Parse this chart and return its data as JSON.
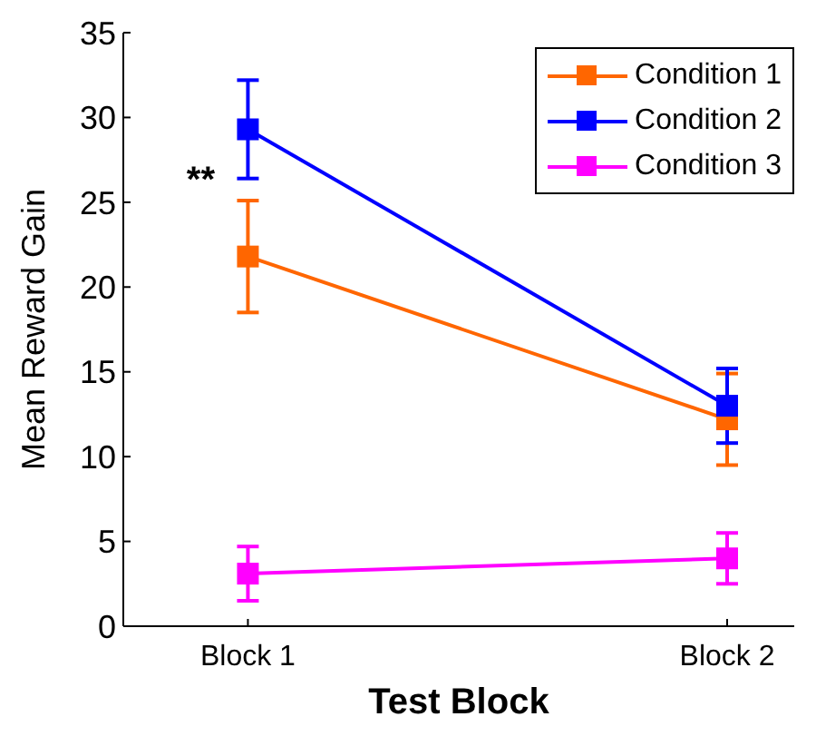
{
  "chart_data": {
    "type": "line",
    "xlabel": "Test Block",
    "ylabel": "Mean Reward Gain",
    "categories": [
      "Block 1",
      "Block 2"
    ],
    "ylim": [
      0,
      35
    ],
    "yticks": [
      0,
      5,
      10,
      15,
      20,
      25,
      30,
      35
    ],
    "grid": false,
    "legend": "top right",
    "marker": "square",
    "line_style": "solid",
    "series": [
      {
        "name": "Condition 1",
        "color": "#ff6600",
        "values": [
          21.8,
          12.2
        ],
        "errors": [
          3.3,
          2.7
        ]
      },
      {
        "name": "Condition 2",
        "color": "#0000ff",
        "values": [
          29.3,
          13.0
        ],
        "errors": [
          2.9,
          2.2
        ]
      },
      {
        "name": "Condition 3",
        "color": "#ff00ff",
        "values": [
          3.1,
          4.0
        ],
        "errors": [
          1.6,
          1.5
        ]
      }
    ],
    "annotations": [
      {
        "text": "**",
        "x": "Block 1",
        "y": 26.5
      }
    ]
  }
}
